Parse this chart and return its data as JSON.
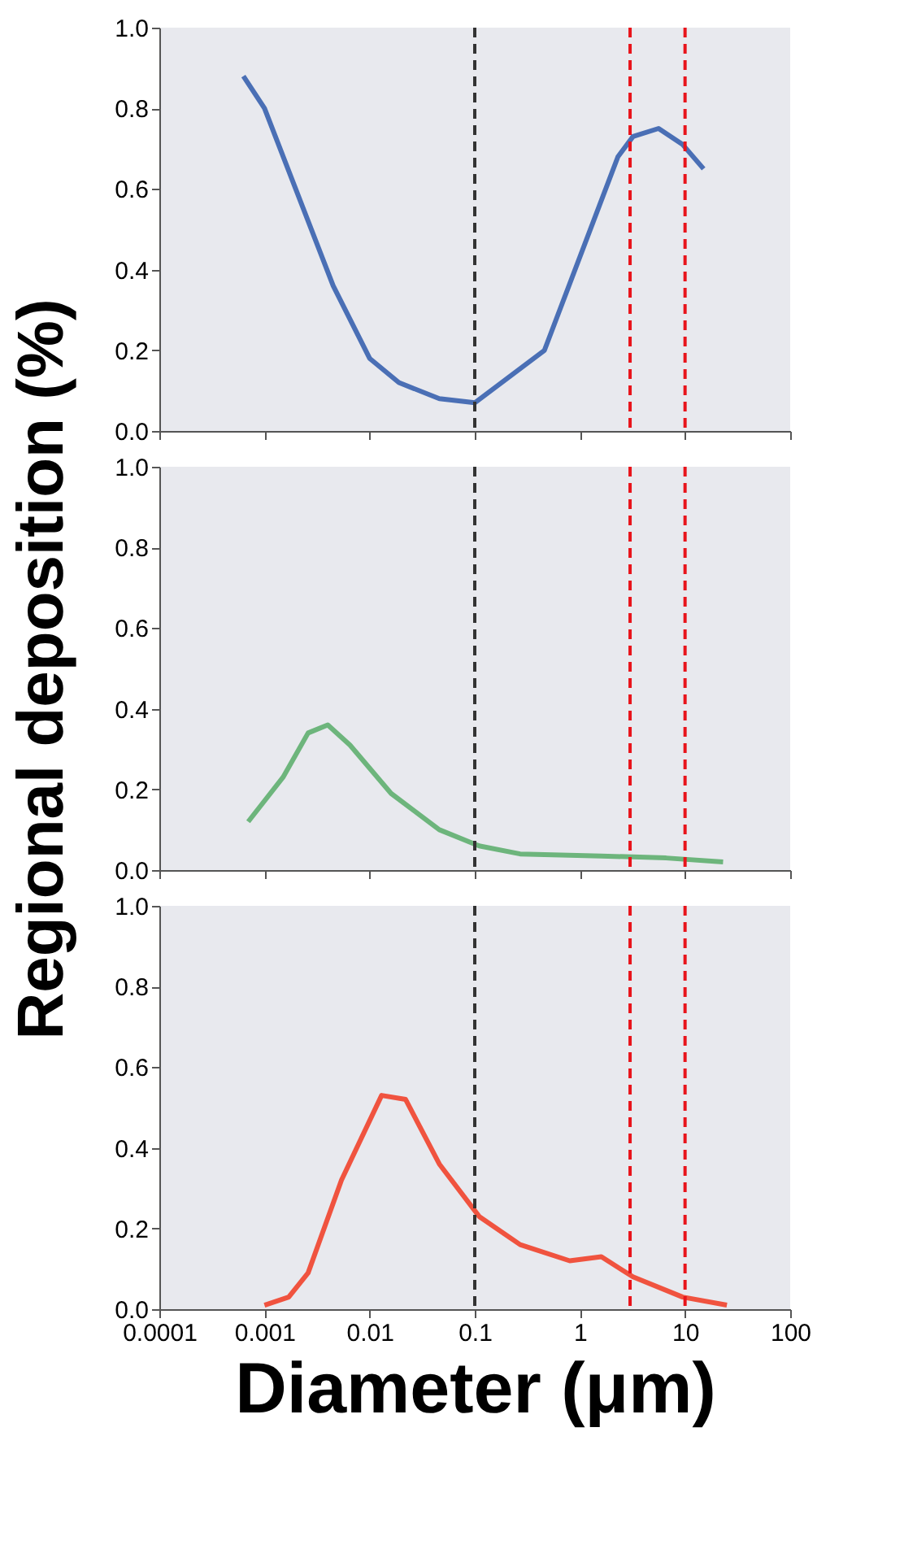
{
  "chart_data": [
    {
      "type": "line",
      "x": [
        0.00063,
        0.001,
        0.0045,
        0.01,
        0.019,
        0.046,
        0.1,
        0.46,
        2.3,
        3.2,
        5.6,
        9.5,
        15
      ],
      "series": [
        {
          "color": "#4a6fb5",
          "values": [
            0.88,
            0.8,
            0.36,
            0.18,
            0.12,
            0.08,
            0.07,
            0.2,
            0.68,
            0.73,
            0.75,
            0.71,
            0.65
          ]
        }
      ],
      "xlim": [
        0.0001,
        100
      ],
      "xticks": [
        0.0001,
        0.001,
        0.01,
        0.1,
        1,
        10,
        100
      ],
      "log": "x",
      "ylim": [
        0,
        1
      ],
      "yticks": [
        {
          "value": 0,
          "label": "0.0"
        },
        {
          "value": 0.2,
          "label": "0.2"
        },
        {
          "value": 0.4,
          "label": "0.4"
        },
        {
          "value": 0.6,
          "label": "0.6"
        },
        {
          "value": 0.8,
          "label": "0.8"
        },
        {
          "value": 1,
          "label": "1.0"
        }
      ],
      "tick_labels": "y",
      "grid": false,
      "legend": false,
      "ref_lines": [
        {
          "axis": "x",
          "value": 0.1,
          "color": "#333333",
          "line_style": "dashed"
        },
        {
          "axis": "x",
          "value": 3,
          "color": "#e8141b",
          "line_style": "dashed"
        },
        {
          "axis": "x",
          "value": 10,
          "color": "#e8141b",
          "line_style": "dashed"
        }
      ]
    },
    {
      "type": "line",
      "x": [
        0.0007,
        0.0015,
        0.0026,
        0.004,
        0.0065,
        0.016,
        0.046,
        0.11,
        0.27,
        1.6,
        6.6,
        23
      ],
      "series": [
        {
          "color": "#6db57c",
          "values": [
            0.12,
            0.23,
            0.34,
            0.36,
            0.31,
            0.19,
            0.1,
            0.06,
            0.04,
            0.035,
            0.03,
            0.02
          ]
        }
      ],
      "ylabel": "Regional deposition (%)",
      "xlim": [
        0.0001,
        100
      ],
      "xticks": [
        0.0001,
        0.001,
        0.01,
        0.1,
        1,
        10,
        100
      ],
      "log": "x",
      "ylim": [
        0,
        1
      ],
      "yticks": [
        {
          "value": 0,
          "label": "0.0"
        },
        {
          "value": 0.2,
          "label": "0.2"
        },
        {
          "value": 0.4,
          "label": "0.4"
        },
        {
          "value": 0.6,
          "label": "0.6"
        },
        {
          "value": 0.8,
          "label": "0.8"
        },
        {
          "value": 1,
          "label": "1.0"
        }
      ],
      "tick_labels": "y",
      "grid": false,
      "legend": false,
      "ref_lines": [
        {
          "axis": "x",
          "value": 0.1,
          "color": "#333333",
          "line_style": "dashed"
        },
        {
          "axis": "x",
          "value": 3,
          "color": "#e8141b",
          "line_style": "dashed"
        },
        {
          "axis": "x",
          "value": 10,
          "color": "#e8141b",
          "line_style": "dashed"
        }
      ]
    },
    {
      "type": "line",
      "x": [
        0.001,
        0.0017,
        0.0026,
        0.0054,
        0.013,
        0.022,
        0.046,
        0.11,
        0.27,
        0.8,
        1.6,
        3.2,
        9.5,
        25
      ],
      "series": [
        {
          "color": "#f0533f",
          "values": [
            0.01,
            0.03,
            0.09,
            0.32,
            0.53,
            0.52,
            0.36,
            0.23,
            0.16,
            0.12,
            0.13,
            0.08,
            0.03,
            0.01
          ]
        }
      ],
      "xlabel": "Diameter (μm)",
      "xlim": [
        0.0001,
        100
      ],
      "xticks": [
        0.0001,
        0.001,
        0.01,
        0.1,
        1,
        10,
        100
      ],
      "log": "x",
      "ylim": [
        0,
        1
      ],
      "yticks": [
        {
          "value": 0,
          "label": "0.0"
        },
        {
          "value": 0.2,
          "label": "0.2"
        },
        {
          "value": 0.4,
          "label": "0.4"
        },
        {
          "value": 0.6,
          "label": "0.6"
        },
        {
          "value": 0.8,
          "label": "0.8"
        },
        {
          "value": 1,
          "label": "1.0"
        }
      ],
      "grid": false,
      "legend": false,
      "ref_lines": [
        {
          "axis": "x",
          "value": 0.1,
          "color": "#333333",
          "line_style": "dashed"
        },
        {
          "axis": "x",
          "value": 3,
          "color": "#e8141b",
          "line_style": "dashed"
        },
        {
          "axis": "x",
          "value": 10,
          "color": "#e8141b",
          "line_style": "dashed"
        }
      ]
    }
  ]
}
